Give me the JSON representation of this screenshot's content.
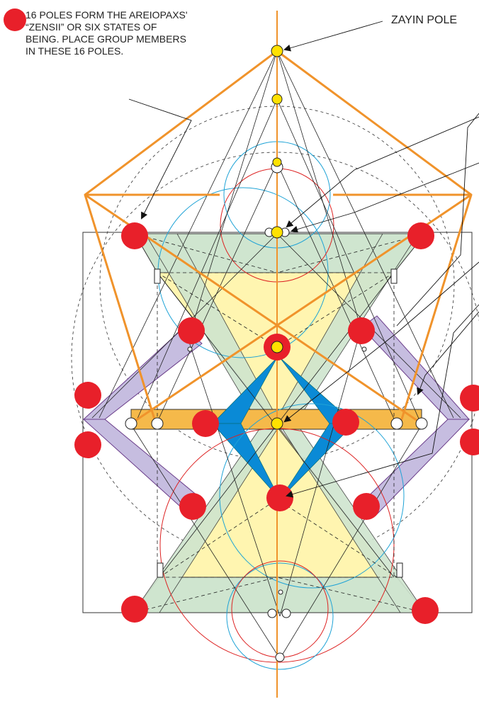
{
  "legend": {
    "dot_color": "#e8202a",
    "text": "16 POLES FORM THE AREIOPAXS' “ZENSII” OR SIX STATES OF BEING. PLACE GROUP MEMBERS IN THESE 16 POLES."
  },
  "labels": {
    "zayin_pole": "ZAYIN POLE"
  },
  "colors": {
    "orange": "#f0932b",
    "red_pole": "#e8202a",
    "yellow_pole": "#ffe100",
    "green_fill": "#cfe5cf",
    "yellow_fill": "#fff5b0",
    "purple_fill": "#c6bde0",
    "blue_fill": "#0a8ad6",
    "band_fill": "#f5b94a"
  }
}
